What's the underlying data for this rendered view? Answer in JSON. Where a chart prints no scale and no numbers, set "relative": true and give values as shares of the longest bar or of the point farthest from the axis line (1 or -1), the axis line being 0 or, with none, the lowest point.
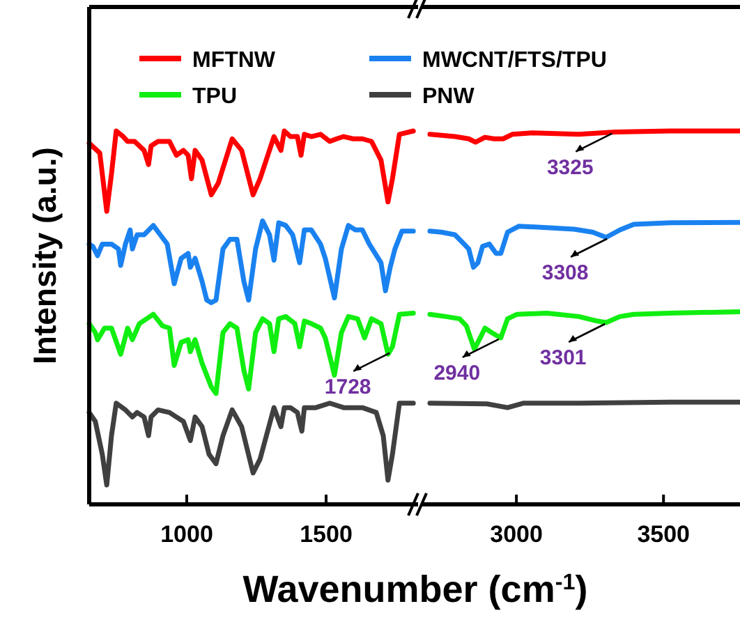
{
  "chart_data": [
    {
      "type": "line",
      "relative": true,
      "xlabel": "Wavenumber (cm$^{-1}$)",
      "ylabel": "Intensity (a.u.)",
      "xlim": [
        650,
        1830
      ],
      "xticks": [
        1000,
        1500
      ],
      "legend": "top",
      "grid": false,
      "marker": "none",
      "line_style": "solid",
      "annotations": [
        {
          "text": "1728",
          "x": 1728,
          "y": 0.409
        }
      ],
      "series": [
        {
          "name": "MFTNW",
          "color": "#ff0000",
          "x": [
            650,
            688,
            713,
            730,
            747,
            772,
            788,
            813,
            847,
            863,
            872,
            897,
            938,
            963,
            988,
            1005,
            1017,
            1030,
            1055,
            1088,
            1113,
            1163,
            1197,
            1238,
            1263,
            1313,
            1338,
            1350,
            1372,
            1397,
            1410,
            1422,
            1447,
            1480,
            1513,
            1538,
            1563,
            1597,
            1630,
            1663,
            1697,
            1722,
            1738,
            1763,
            1813
          ],
          "values": [
            0.967,
            0.941,
            0.785,
            0.885,
            1,
            0.985,
            0.972,
            0.972,
            0.948,
            0.91,
            0.96,
            0.972,
            0.972,
            0.935,
            0.948,
            0.935,
            0.872,
            0.948,
            0.922,
            0.829,
            0.86,
            0.979,
            0.948,
            0.829,
            0.872,
            0.985,
            0.948,
            1,
            0.985,
            0.985,
            0.935,
            0.991,
            0.985,
            0.991,
            0.972,
            0.979,
            0.985,
            0.979,
            0.979,
            0.972,
            0.922,
            0.81,
            0.872,
            0.991,
            1
          ]
        },
        {
          "name": "MWCNT/FTS/TPU",
          "color": "#1a82f0",
          "x": [
            650,
            663,
            680,
            697,
            730,
            755,
            763,
            780,
            797,
            805,
            822,
            847,
            880,
            905,
            930,
            955,
            980,
            1005,
            1013,
            1030,
            1055,
            1072,
            1088,
            1105,
            1130,
            1155,
            1180,
            1205,
            1222,
            1247,
            1272,
            1297,
            1313,
            1330,
            1355,
            1380,
            1405,
            1422,
            1447,
            1480,
            1497,
            1530,
            1555,
            1580,
            1605,
            1630,
            1655,
            1697,
            1713,
            1730,
            1747,
            1772,
            1813
          ],
          "values": [
            0.697,
            0.691,
            0.666,
            0.697,
            0.697,
            0.684,
            0.64,
            0.697,
            0.735,
            0.684,
            0.722,
            0.722,
            0.747,
            0.722,
            0.697,
            0.591,
            0.659,
            0.672,
            0.635,
            0.659,
            0.597,
            0.547,
            0.54,
            0.547,
            0.684,
            0.71,
            0.71,
            0.597,
            0.547,
            0.684,
            0.759,
            0.722,
            0.654,
            0.754,
            0.747,
            0.722,
            0.647,
            0.735,
            0.735,
            0.697,
            0.659,
            0.553,
            0.684,
            0.747,
            0.735,
            0.735,
            0.697,
            0.647,
            0.572,
            0.635,
            0.684,
            0.732,
            0.732
          ]
        },
        {
          "name": "TPU",
          "color": "#11ee11",
          "x": [
            650,
            672,
            680,
            705,
            730,
            763,
            788,
            805,
            830,
            880,
            913,
            938,
            955,
            980,
            1005,
            1013,
            1030,
            1055,
            1088,
            1105,
            1130,
            1155,
            1180,
            1205,
            1222,
            1247,
            1272,
            1297,
            1313,
            1330,
            1355,
            1388,
            1405,
            1422,
            1447,
            1480,
            1497,
            1530,
            1555,
            1580,
            1613,
            1638,
            1663,
            1697,
            1722,
            1738,
            1763,
            1813
          ],
          "values": [
            0.484,
            0.46,
            0.441,
            0.472,
            0.472,
            0.402,
            0.472,
            0.441,
            0.484,
            0.509,
            0.478,
            0.472,
            0.372,
            0.434,
            0.441,
            0.409,
            0.441,
            0.378,
            0.315,
            0.297,
            0.46,
            0.484,
            0.472,
            0.359,
            0.309,
            0.46,
            0.497,
            0.484,
            0.409,
            0.497,
            0.503,
            0.484,
            0.422,
            0.491,
            0.484,
            0.472,
            0.446,
            0.346,
            0.46,
            0.503,
            0.497,
            0.446,
            0.497,
            0.484,
            0.402,
            0.422,
            0.509,
            0.512
          ]
        },
        {
          "name": "PNW",
          "color": "#404040",
          "x": [
            650,
            672,
            697,
            713,
            730,
            747,
            780,
            805,
            822,
            847,
            863,
            872,
            897,
            938,
            963,
            988,
            1013,
            1030,
            1055,
            1080,
            1105,
            1130,
            1163,
            1197,
            1238,
            1263,
            1313,
            1338,
            1350,
            1372,
            1397,
            1413,
            1422,
            1463,
            1513,
            1563,
            1630,
            1680,
            1705,
            1722,
            1738,
            1763,
            1813
          ],
          "values": [
            0.246,
            0.222,
            0.134,
            0.052,
            0.184,
            0.271,
            0.253,
            0.234,
            0.246,
            0.234,
            0.184,
            0.234,
            0.253,
            0.246,
            0.234,
            0.222,
            0.171,
            0.234,
            0.208,
            0.134,
            0.109,
            0.184,
            0.253,
            0.208,
            0.084,
            0.121,
            0.259,
            0.208,
            0.259,
            0.259,
            0.246,
            0.196,
            0.259,
            0.259,
            0.271,
            0.259,
            0.259,
            0.246,
            0.184,
            0.065,
            0.134,
            0.271,
            0.271
          ]
        }
      ]
    },
    {
      "type": "line",
      "relative": true,
      "xlim": [
        2680,
        3760
      ],
      "xticks": [
        3000,
        3500
      ],
      "grid": false,
      "marker": "none",
      "line_style": "solid",
      "annotations": [
        {
          "text": "3325",
          "x": 3325,
          "y": 0.997
        },
        {
          "text": "3308",
          "x": 3308,
          "y": 0.715
        },
        {
          "text": "3301",
          "x": 3301,
          "y": 0.487
        },
        {
          "text": "2940",
          "x": 2940,
          "y": 0.446
        }
      ],
      "series": [
        {
          "color": "#ff0000",
          "x": [
            2706,
            2791,
            2838,
            2861,
            2893,
            2924,
            2955,
            2986,
            3056,
            3212,
            3336,
            3523,
            3760
          ],
          "values": [
            0.991,
            0.985,
            0.979,
            0.97,
            0.983,
            0.979,
            0.979,
            0.991,
            0.995,
            0.991,
            0.997,
            1,
            1
          ]
        },
        {
          "color": "#1a82f0",
          "x": [
            2706,
            2745,
            2791,
            2815,
            2838,
            2854,
            2869,
            2885,
            2908,
            2931,
            2947,
            2970,
            3009,
            3103,
            3196,
            3259,
            3305,
            3352,
            3399,
            3523,
            3760
          ],
          "values": [
            0.732,
            0.729,
            0.722,
            0.703,
            0.684,
            0.635,
            0.647,
            0.691,
            0.697,
            0.672,
            0.672,
            0.729,
            0.745,
            0.741,
            0.737,
            0.729,
            0.715,
            0.735,
            0.75,
            0.754,
            0.755
          ]
        },
        {
          "color": "#11ee11",
          "x": [
            2706,
            2760,
            2807,
            2830,
            2857,
            2877,
            2893,
            2916,
            2947,
            2970,
            3002,
            3103,
            3212,
            3274,
            3305,
            3352,
            3399,
            3523,
            3760
          ],
          "values": [
            0.509,
            0.503,
            0.497,
            0.478,
            0.416,
            0.446,
            0.472,
            0.46,
            0.446,
            0.497,
            0.509,
            0.512,
            0.503,
            0.491,
            0.487,
            0.503,
            0.509,
            0.512,
            0.516
          ]
        },
        {
          "color": "#404040",
          "x": [
            2706,
            2900,
            2970,
            3025,
            3212,
            3523,
            3760
          ],
          "values": [
            0.271,
            0.269,
            0.259,
            0.271,
            0.271,
            0.274,
            0.274
          ]
        }
      ]
    }
  ]
}
